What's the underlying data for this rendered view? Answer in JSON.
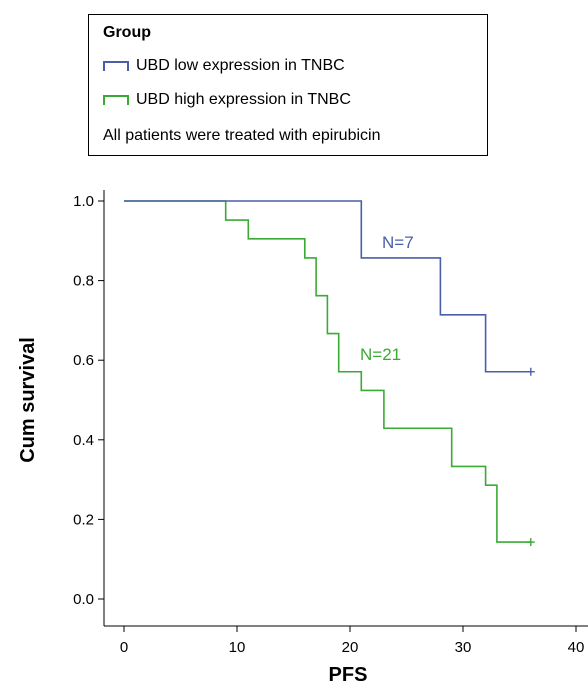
{
  "chart_data": {
    "type": "line",
    "step": true,
    "xlabel": "PFS",
    "ylabel": "Cum survival",
    "xlim": [
      0,
      40
    ],
    "ylim": [
      0,
      1.0
    ],
    "x_ticks": [
      "0",
      "10",
      "20",
      "30",
      "40"
    ],
    "y_ticks": [
      "0.0",
      "0.2",
      "0.4",
      "0.6",
      "0.8",
      "1.0"
    ],
    "grid": false,
    "legend": {
      "title": "Group",
      "placement": "top",
      "note": "All patients were treated with epirubicin"
    },
    "series": [
      {
        "name": "UBD low expression in TNBC",
        "color": "#4a5faa",
        "annotation": "N=7",
        "x": [
          0,
          21,
          28,
          32,
          36
        ],
        "y": [
          1.0,
          0.857,
          0.714,
          0.571,
          0.571
        ],
        "censored_x": [
          36
        ]
      },
      {
        "name": "UBD high expression in TNBC",
        "color": "#3aaa35",
        "annotation": "N=21",
        "x": [
          0,
          9,
          11,
          16,
          17,
          18,
          19,
          21,
          23,
          29,
          32,
          33,
          36
        ],
        "y": [
          1.0,
          0.952,
          0.905,
          0.857,
          0.762,
          0.667,
          0.571,
          0.524,
          0.429,
          0.333,
          0.286,
          0.143,
          0.143
        ],
        "censored_x": [
          36
        ]
      }
    ]
  }
}
